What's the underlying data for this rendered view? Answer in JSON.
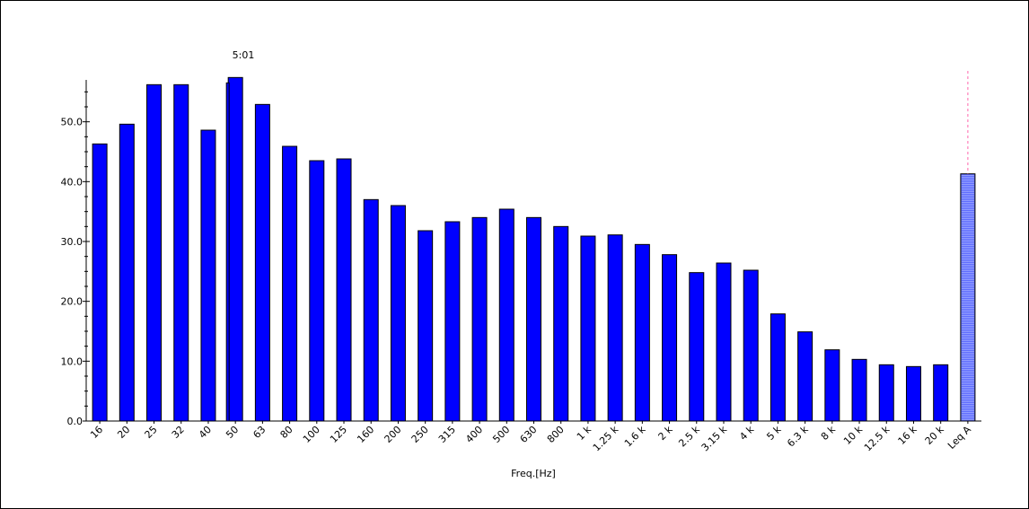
{
  "chart_data": {
    "type": "bar",
    "title": "",
    "xlabel": "Freq.[Hz]",
    "ylabel": "",
    "ylim": [
      0,
      57
    ],
    "yticks": [
      "0.0",
      "10.0",
      "20.0",
      "30.0",
      "40.0",
      "50.0"
    ],
    "yticks_values": [
      0,
      10,
      20,
      30,
      40,
      50
    ],
    "categories": [
      "16",
      "20",
      "25",
      "32",
      "40",
      "50",
      "63",
      "80",
      "100",
      "125",
      "160",
      "200",
      "250",
      "315",
      "400",
      "500",
      "630",
      "800",
      "1 k",
      "1.25 k",
      "1.6 k",
      "2 k",
      "2.5 k",
      "3.15 k",
      "4 k",
      "5 k",
      "6.3 k",
      "8 k",
      "10 k",
      "12.5 k",
      "16 k",
      "20 k",
      "Leq A"
    ],
    "values": [
      46.3,
      49.6,
      56.2,
      56.2,
      48.6,
      57.4,
      52.9,
      45.9,
      43.5,
      43.8,
      37.0,
      36.0,
      31.8,
      33.3,
      34.0,
      35.4,
      34.0,
      32.5,
      30.9,
      31.1,
      29.5,
      27.8,
      24.8,
      26.4,
      25.2,
      17.9,
      14.9,
      11.9,
      10.3,
      9.4,
      9.1,
      9.4,
      41.3
    ],
    "highlight_index": 5,
    "highlight_label": "5:01",
    "colors": {
      "bar": "#0000ff",
      "bar_edge": "#000000",
      "leq_bar": "#5e6cff",
      "cursor": "#ff66aa"
    }
  }
}
